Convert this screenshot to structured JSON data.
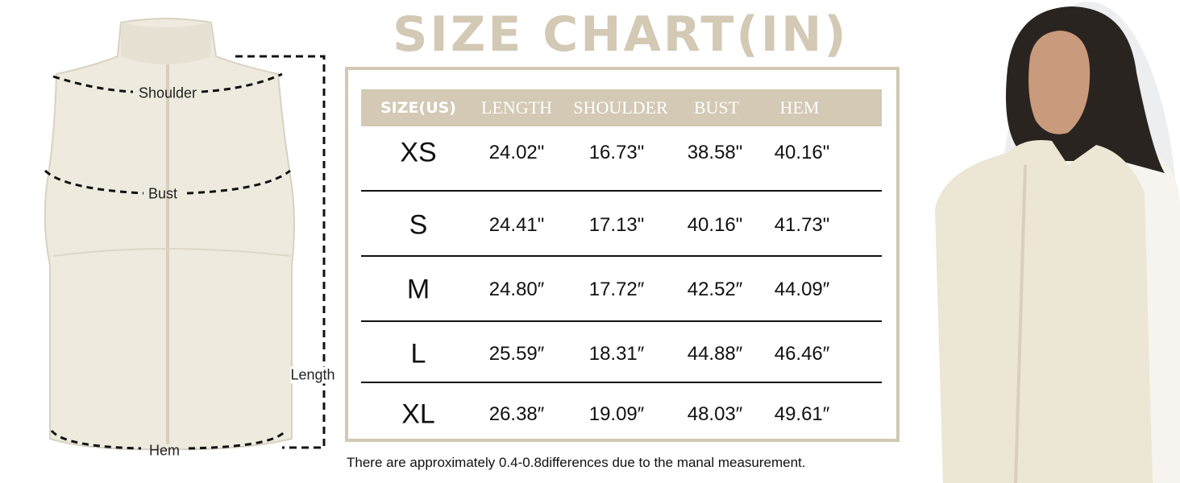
{
  "title": "SIZE CHART(IN)",
  "colors": {
    "accent": "#d3c9b4",
    "text": "#111111"
  },
  "diagram_labels": {
    "shoulder": "Shoulder",
    "bust": "Bust",
    "length": "Length",
    "hem": "Hem"
  },
  "chart_data": {
    "type": "table",
    "columns": [
      "SIZE(US)",
      "LENGTH",
      "SHOULDER",
      "BUST",
      "HEM"
    ],
    "rows": [
      [
        "XS",
        "24.02\"",
        "16.73\"",
        "38.58\"",
        "40.16\""
      ],
      [
        "S",
        "24.41\"",
        "17.13\"",
        "40.16\"",
        "41.73\""
      ],
      [
        "M",
        "24.80″",
        "17.72″",
        "42.52″",
        "44.09″"
      ],
      [
        "L",
        "25.59″",
        "18.31″",
        "44.88″",
        "46.46″"
      ],
      [
        "XL",
        "26.38″",
        "19.09″",
        "48.03″",
        "49.61″"
      ]
    ]
  },
  "note": "There are approximately 0.4-0.8differences due to the manal  measurement."
}
